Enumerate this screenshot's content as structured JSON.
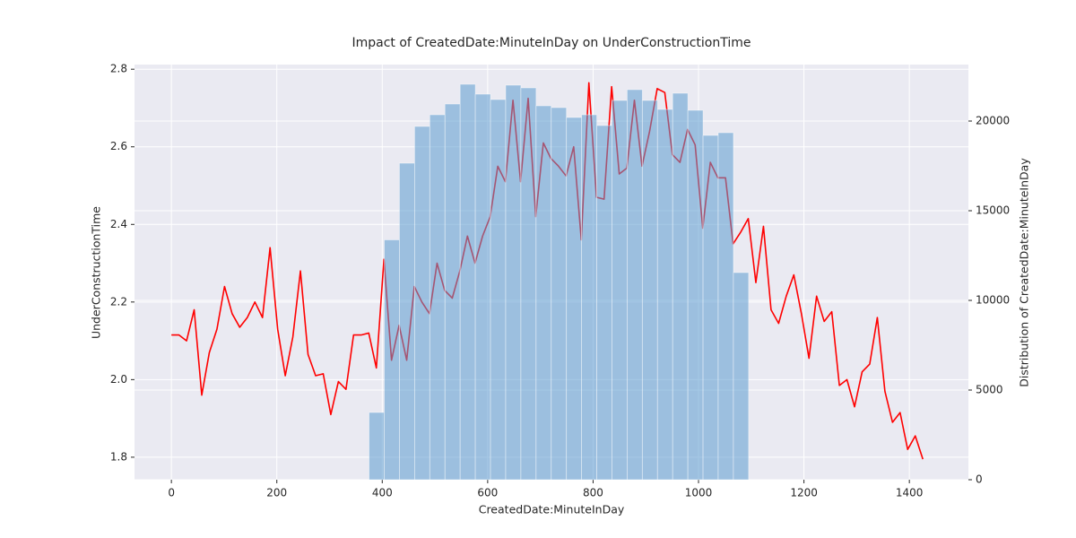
{
  "chart_data": {
    "type": "combo",
    "title": "Impact of CreatedDate:MinuteInDay on UnderConstructionTime",
    "xlabel": "CreatedDate:MinuteInDay",
    "ylabel": "UnderConstructionTime",
    "y2label": "Distribution of CreatedDate:MinuteInDay",
    "xlim": [
      -70,
      1512
    ],
    "xticks": [
      0,
      200,
      400,
      600,
      800,
      1000,
      1200,
      1400
    ],
    "ylim": [
      1.742,
      2.812
    ],
    "yticks": [
      1.8,
      {
        "value": 2.0,
        "label": "2.0"
      },
      2.2,
      2.4,
      2.6,
      2.8
    ],
    "y2lim": [
      0,
      23150
    ],
    "y2ticks": [
      0,
      5000,
      10000,
      15000,
      20000
    ],
    "grid": true,
    "background": "#eaeaf2",
    "series": [
      {
        "type": "line",
        "color": "#ff0000",
        "x": [
          0,
          14.4,
          28.8,
          43.2,
          57.6,
          72,
          86.4,
          100.8,
          115.2,
          129.6,
          144,
          158.4,
          172.8,
          187.2,
          201.6,
          216,
          230.4,
          244.8,
          259.2,
          273.6,
          288,
          302.4,
          316.8,
          331.2,
          345.6,
          360,
          374.4,
          388.8,
          403.2,
          417.6,
          432,
          446.4,
          460.8,
          475.2,
          489.6,
          504,
          518.4,
          532.8,
          547.2,
          561.6,
          576,
          590.4,
          604.8,
          619.2,
          633.6,
          648,
          662.4,
          676.8,
          691.2,
          705.6,
          720,
          734.4,
          748.8,
          763.2,
          777.6,
          792,
          806.4,
          820.8,
          835.2,
          849.6,
          864,
          878.4,
          892.8,
          907.2,
          921.6,
          936,
          950.4,
          964.8,
          979.2,
          993.6,
          1008,
          1022.4,
          1036.8,
          1051.2,
          1065.6,
          1080,
          1094.4,
          1108.8,
          1123.2,
          1137.6,
          1152,
          1166.4,
          1180.8,
          1195.2,
          1209.6,
          1224,
          1238.4,
          1252.8,
          1267.2,
          1281.6,
          1296,
          1310.4,
          1324.8,
          1339.2,
          1353.6,
          1368,
          1382.4,
          1396.8,
          1411.2,
          1425.6
        ],
        "values": [
          2.115,
          2.115,
          2.1,
          2.18,
          1.96,
          2.07,
          2.13,
          2.24,
          2.17,
          2.135,
          2.16,
          2.2,
          2.16,
          2.34,
          2.13,
          2.01,
          2.11,
          2.28,
          2.065,
          2.01,
          2.015,
          1.91,
          1.995,
          1.975,
          2.115,
          2.115,
          2.12,
          2.03,
          2.31,
          2.05,
          2.14,
          2.05,
          2.24,
          2.2,
          2.17,
          2.3,
          2.23,
          2.21,
          2.28,
          2.37,
          2.3,
          2.37,
          2.42,
          2.55,
          2.51,
          2.72,
          2.51,
          2.725,
          2.42,
          2.61,
          2.57,
          2.55,
          2.525,
          2.6,
          2.36,
          2.765,
          2.47,
          2.465,
          2.755,
          2.53,
          2.545,
          2.72,
          2.55,
          2.64,
          2.75,
          2.74,
          2.58,
          2.56,
          2.645,
          2.605,
          2.39,
          2.56,
          2.52,
          2.52,
          2.35,
          2.38,
          2.415,
          2.25,
          2.395,
          2.18,
          2.145,
          2.215,
          2.27,
          2.17,
          2.055,
          2.215,
          2.15,
          2.175,
          1.985,
          2.0,
          1.93,
          2.02,
          2.04,
          2.16,
          1.97,
          1.89,
          1.915,
          1.82,
          1.855,
          1.795
        ]
      },
      {
        "type": "histogram",
        "axis": "y2",
        "color": "#5b9bd0",
        "alpha": 0.55,
        "bins": [
          375,
          403.8,
          432.6,
          461.4,
          490.2,
          519,
          547.8,
          576.6,
          605.4,
          634.2,
          663,
          691.8,
          720.6,
          749.4,
          778.2,
          807,
          835.8,
          864.6,
          893.4,
          922.2,
          951,
          979.8,
          1008.6,
          1037.4,
          1066.2,
          1095
        ],
        "values": [
          3750,
          13375,
          17650,
          19700,
          20350,
          20950,
          22050,
          21500,
          21200,
          22000,
          21850,
          20850,
          20750,
          20200,
          20350,
          19750,
          21150,
          21750,
          21150,
          20650,
          21550,
          20600,
          19200,
          19350,
          11550
        ]
      }
    ]
  }
}
